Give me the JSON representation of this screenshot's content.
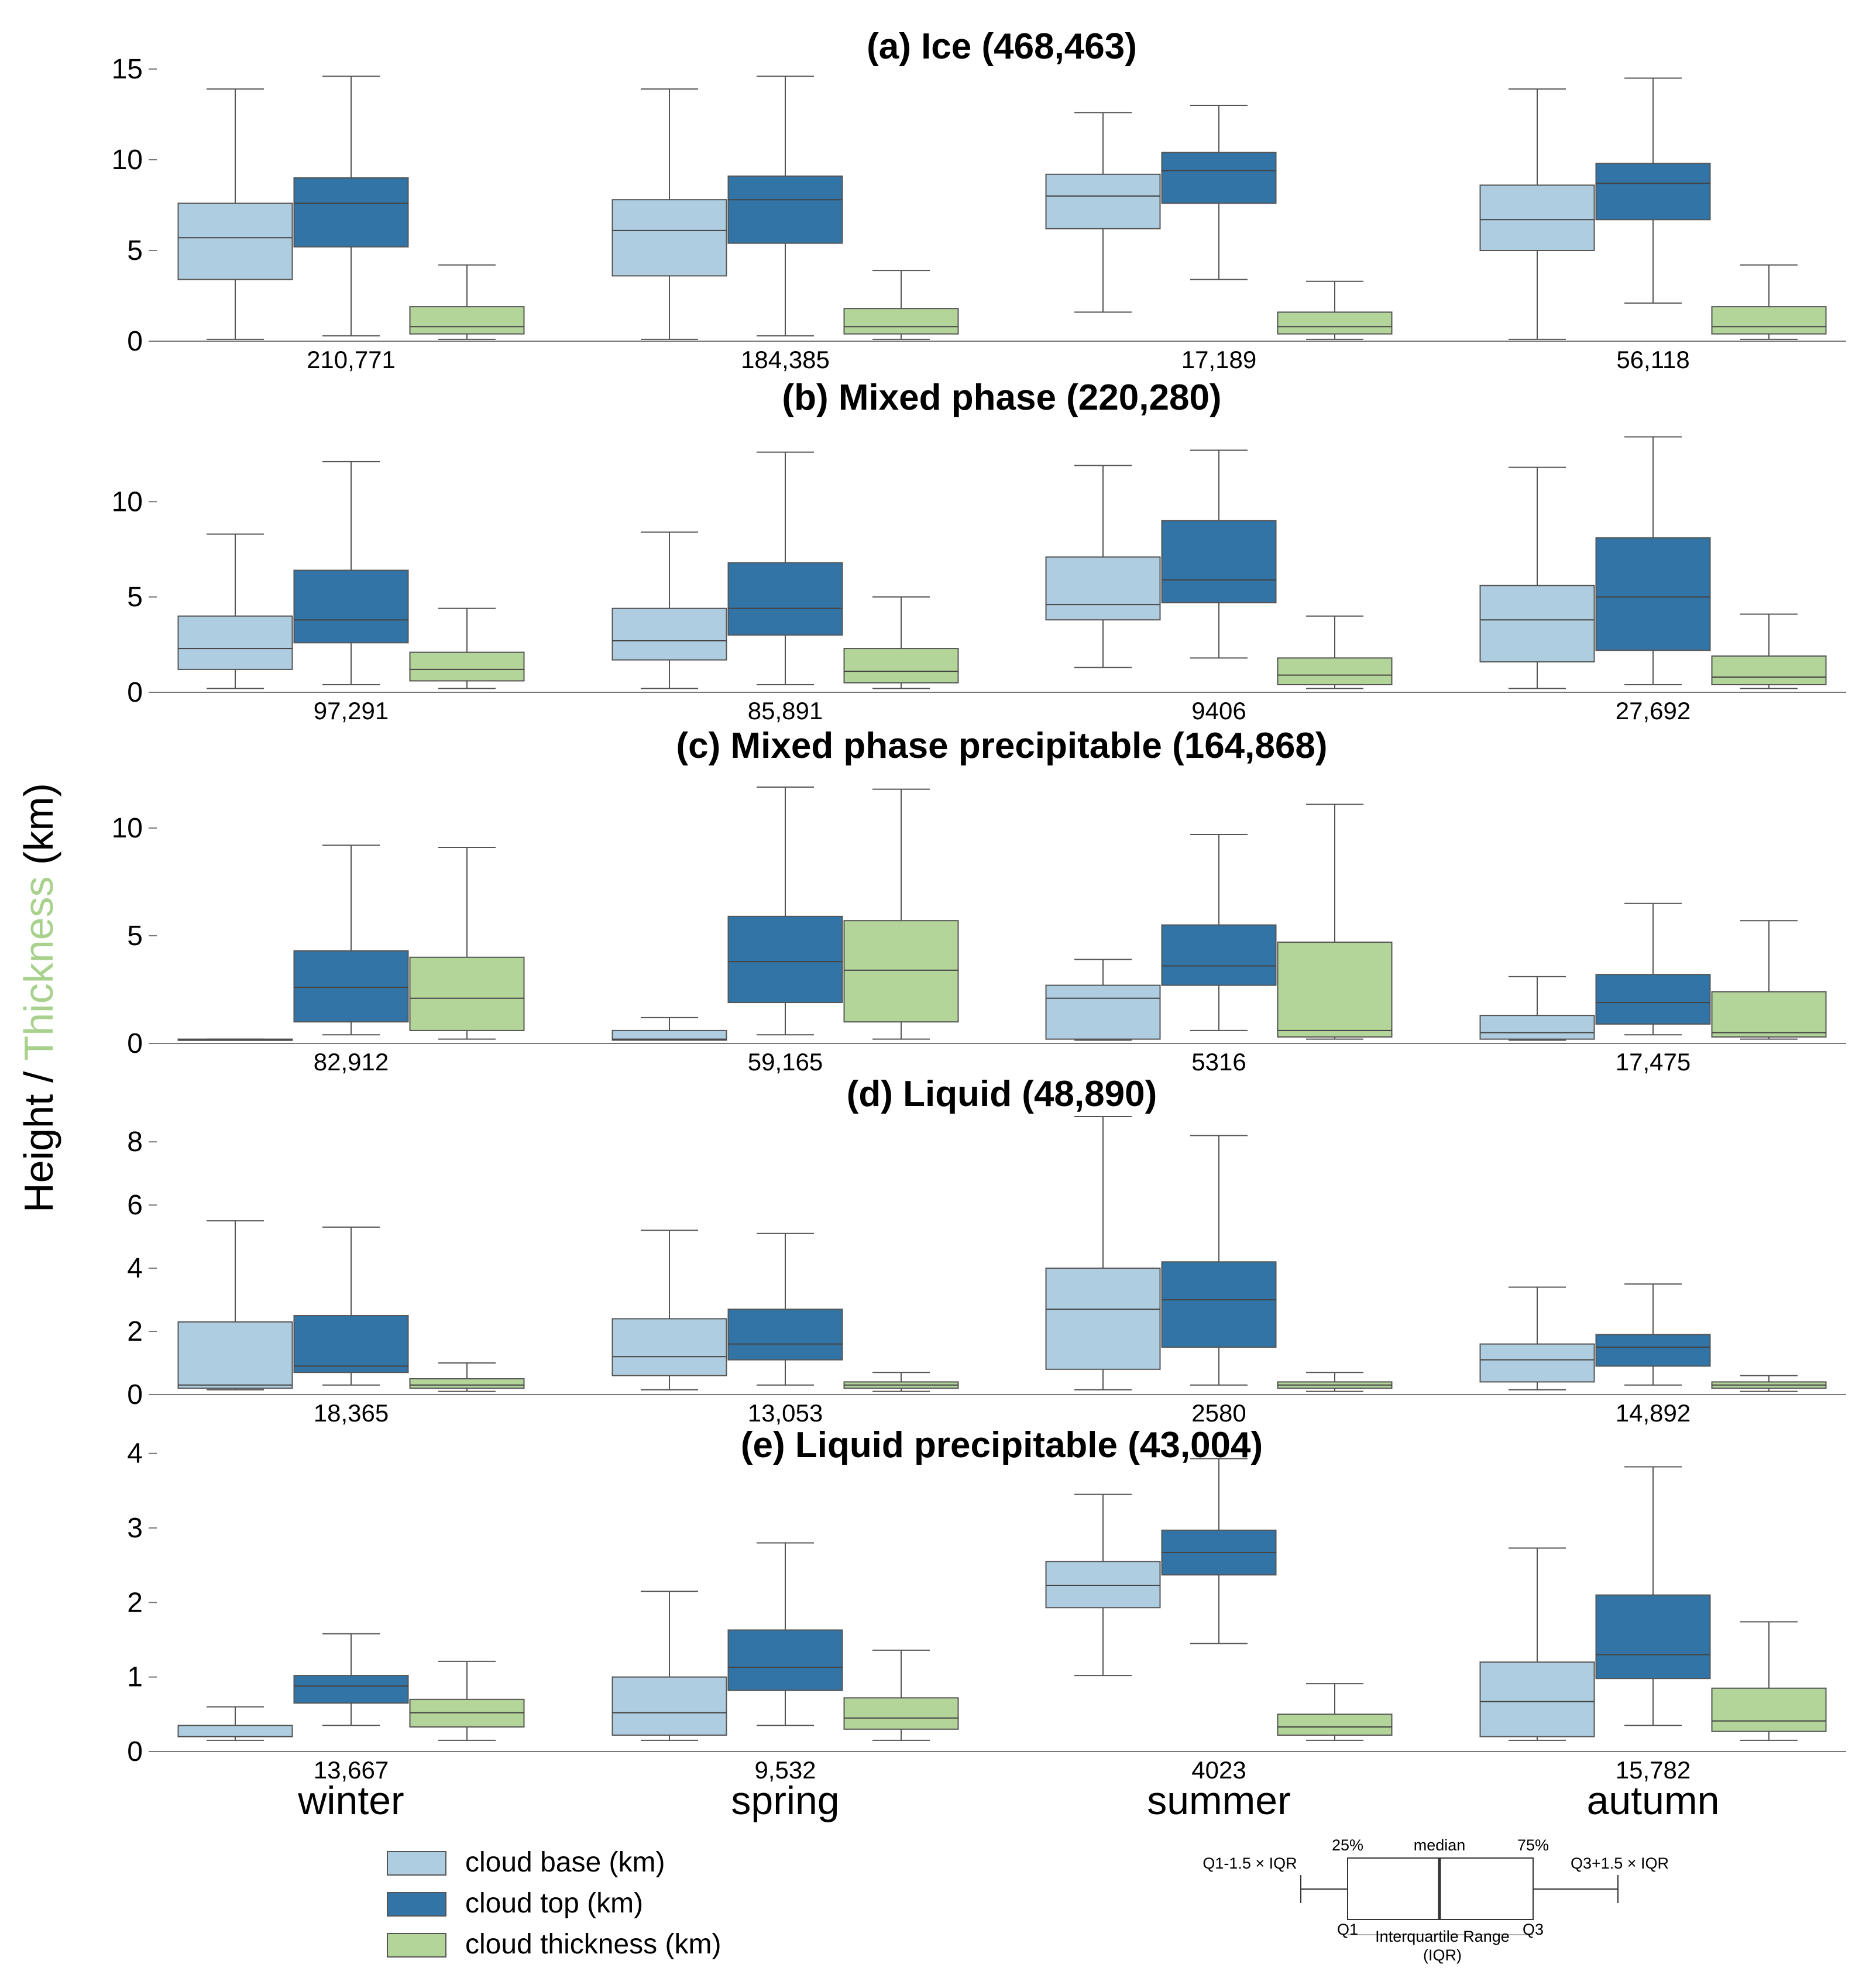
{
  "chart_data": {
    "type": "boxplot",
    "ylabel_parts": [
      "Height / ",
      "Thickness",
      " (km)"
    ],
    "categories": [
      "winter",
      "spring",
      "summer",
      "autumn"
    ],
    "colors": {
      "base": "#aecde0",
      "top": "#3174a5",
      "thickness": "#b3d59a",
      "accent_label": "#a9d18e",
      "stroke": "#555555"
    },
    "legend": [
      {
        "key": "base",
        "label": "cloud base (km)"
      },
      {
        "key": "top",
        "label": "cloud top (km)"
      },
      {
        "key": "thickness",
        "label": "cloud thickness (km)"
      }
    ],
    "box_key": {
      "q1_label": "Q1",
      "q3_label": "Q3",
      "p25_label": "25%",
      "median_label": "median",
      "p75_label": "75%",
      "lower_whisker_label": "Q1-1.5 × IQR",
      "upper_whisker_label": "Q3+1.5 × IQR",
      "iqr_label_1": "Interquartile Range",
      "iqr_label_2": "(IQR)"
    },
    "panels": [
      {
        "title": "(a) Ice (468,463)",
        "ylim": [
          0,
          15
        ],
        "yticks": [
          0,
          5,
          10,
          15
        ],
        "counts": [
          "210,771",
          "184,385",
          "17,189",
          "56,118"
        ],
        "boxes": [
          [
            [
              0.1,
              3.4,
              5.7,
              7.6,
              13.9
            ],
            [
              0.3,
              5.2,
              7.6,
              9.0,
              14.6
            ],
            [
              0.1,
              0.4,
              0.8,
              1.9,
              4.2
            ]
          ],
          [
            [
              0.1,
              3.6,
              6.1,
              7.8,
              13.9
            ],
            [
              0.3,
              5.4,
              7.8,
              9.1,
              14.6
            ],
            [
              0.1,
              0.4,
              0.8,
              1.8,
              3.9
            ]
          ],
          [
            [
              1.6,
              6.2,
              8.0,
              9.2,
              12.6
            ],
            [
              3.4,
              7.6,
              9.4,
              10.4,
              13.0
            ],
            [
              0.1,
              0.4,
              0.8,
              1.6,
              3.3
            ]
          ],
          [
            [
              0.1,
              5.0,
              6.7,
              8.6,
              13.9
            ],
            [
              2.1,
              6.7,
              8.7,
              9.8,
              14.5
            ],
            [
              0.1,
              0.4,
              0.8,
              1.9,
              4.2
            ]
          ]
        ]
      },
      {
        "title": "(b) Mixed phase (220,280)",
        "ylim": [
          0,
          13.6
        ],
        "yticks": [
          0,
          5,
          10
        ],
        "counts": [
          "97,291",
          "85,891",
          "9406",
          "27,692"
        ],
        "boxes": [
          [
            [
              0.2,
              1.2,
              2.3,
              4.0,
              8.3
            ],
            [
              0.4,
              2.6,
              3.8,
              6.4,
              12.1
            ],
            [
              0.2,
              0.6,
              1.2,
              2.1,
              4.4
            ]
          ],
          [
            [
              0.2,
              1.7,
              2.7,
              4.4,
              8.4
            ],
            [
              0.4,
              3.0,
              4.4,
              6.8,
              12.6
            ],
            [
              0.2,
              0.5,
              1.1,
              2.3,
              5.0
            ]
          ],
          [
            [
              1.3,
              3.8,
              4.6,
              7.1,
              11.9
            ],
            [
              1.8,
              4.7,
              5.9,
              9.0,
              12.7
            ],
            [
              0.2,
              0.4,
              0.9,
              1.8,
              4.0
            ]
          ],
          [
            [
              0.2,
              1.6,
              3.8,
              5.6,
              11.8
            ],
            [
              0.4,
              2.2,
              5.0,
              8.1,
              13.4
            ],
            [
              0.2,
              0.4,
              0.8,
              1.9,
              4.1
            ]
          ]
        ]
      },
      {
        "title": "(c) Mixed phase precipitable (164,868)",
        "ylim": [
          0,
          11.9
        ],
        "yticks": [
          0,
          5,
          10
        ],
        "counts": [
          "82,912",
          "59,165",
          "5316",
          "17,475"
        ],
        "boxes": [
          [
            [
              0.15,
              0.15,
              0.15,
              0.2,
              0.2
            ],
            [
              0.4,
              1.0,
              2.6,
              4.3,
              9.2
            ],
            [
              0.2,
              0.6,
              2.1,
              4.0,
              9.1
            ]
          ],
          [
            [
              0.15,
              0.15,
              0.2,
              0.6,
              1.2
            ],
            [
              0.4,
              1.9,
              3.8,
              5.9,
              11.9
            ],
            [
              0.2,
              1.0,
              3.4,
              5.7,
              11.8
            ]
          ],
          [
            [
              0.15,
              0.2,
              2.1,
              2.7,
              3.9
            ],
            [
              0.6,
              2.7,
              3.6,
              5.5,
              9.7
            ],
            [
              0.2,
              0.3,
              0.6,
              4.7,
              11.1
            ]
          ],
          [
            [
              0.15,
              0.2,
              0.5,
              1.3,
              3.1
            ],
            [
              0.4,
              0.9,
              1.9,
              3.2,
              6.5
            ],
            [
              0.2,
              0.3,
              0.5,
              2.4,
              5.7
            ]
          ]
        ]
      },
      {
        "title": "(d) Liquid (48,890)",
        "ylim": [
          0,
          8.8
        ],
        "yticks": [
          0,
          2,
          4,
          6,
          8
        ],
        "counts": [
          "18,365",
          "13,053",
          "2580",
          "14,892"
        ],
        "boxes": [
          [
            [
              0.15,
              0.2,
              0.3,
              2.3,
              5.5
            ],
            [
              0.3,
              0.7,
              0.9,
              2.5,
              5.3
            ],
            [
              0.1,
              0.2,
              0.3,
              0.5,
              1.0
            ]
          ],
          [
            [
              0.15,
              0.6,
              1.2,
              2.4,
              5.2
            ],
            [
              0.3,
              1.1,
              1.6,
              2.7,
              5.1
            ],
            [
              0.1,
              0.2,
              0.3,
              0.4,
              0.7
            ]
          ],
          [
            [
              0.15,
              0.8,
              2.7,
              4.0,
              8.8
            ],
            [
              0.3,
              1.5,
              3.0,
              4.2,
              8.2
            ],
            [
              0.1,
              0.2,
              0.3,
              0.4,
              0.7
            ]
          ],
          [
            [
              0.15,
              0.4,
              1.1,
              1.6,
              3.4
            ],
            [
              0.3,
              0.9,
              1.5,
              1.9,
              3.5
            ],
            [
              0.1,
              0.2,
              0.3,
              0.4,
              0.6
            ]
          ]
        ]
      },
      {
        "title": "(e) Liquid precipitable (43,004)",
        "ylim": [
          0,
          3.95
        ],
        "yticks": [
          0,
          1,
          2,
          3,
          4
        ],
        "counts": [
          "13,667",
          "9,532",
          "4023",
          "15,782"
        ],
        "boxes": [
          [
            [
              0.15,
              0.2,
              0.2,
              0.35,
              0.6
            ],
            [
              0.35,
              0.65,
              0.88,
              1.02,
              1.58
            ],
            [
              0.15,
              0.33,
              0.52,
              0.7,
              1.21
            ]
          ],
          [
            [
              0.15,
              0.22,
              0.52,
              1.0,
              2.15
            ],
            [
              0.35,
              0.82,
              1.13,
              1.63,
              2.8
            ],
            [
              0.15,
              0.3,
              0.45,
              0.72,
              1.36
            ]
          ],
          [
            [
              1.02,
              1.93,
              2.23,
              2.55,
              3.45
            ],
            [
              1.45,
              2.37,
              2.67,
              2.97,
              3.93
            ],
            [
              0.15,
              0.22,
              0.33,
              0.5,
              0.91
            ]
          ],
          [
            [
              0.15,
              0.2,
              0.67,
              1.2,
              2.73
            ],
            [
              0.35,
              0.98,
              1.3,
              2.1,
              3.82
            ],
            [
              0.15,
              0.27,
              0.41,
              0.85,
              1.74
            ]
          ]
        ]
      }
    ]
  }
}
